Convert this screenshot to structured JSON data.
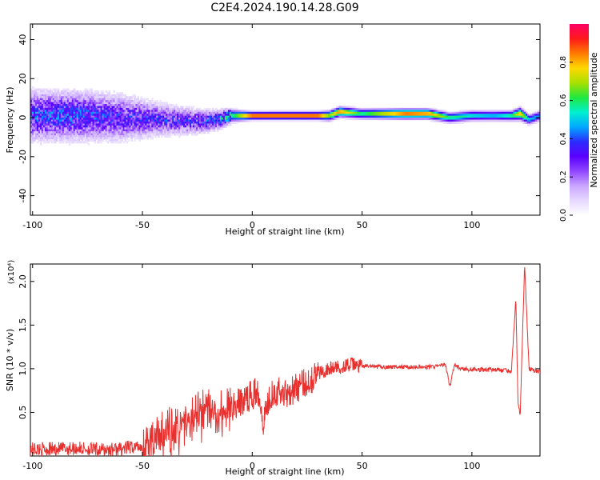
{
  "title": "C2E4.2024.190.14.28.G09",
  "colors": {
    "snr_line": "#e8312f",
    "colormap": [
      "#ffffff",
      "#e6d8ff",
      "#c9a6ff",
      "#8f45ff",
      "#5a00ff",
      "#2c2cff",
      "#00a8ff",
      "#00f0d0",
      "#20e840",
      "#a8e000",
      "#ffd800",
      "#ff7a00",
      "#ff1a1a",
      "#ff0066"
    ]
  },
  "chart_data": [
    {
      "type": "heatmap",
      "title": "C2E4.2024.190.14.28.G09",
      "xlabel": "Height of straight line (km)",
      "ylabel": "Frequency (Hz)",
      "xlim": [
        -101,
        131
      ],
      "ylim": [
        -50,
        48
      ],
      "xticks": [
        -100,
        -50,
        0,
        50,
        100
      ],
      "xtick_labels": [
        "-100",
        "-50",
        "0",
        "50",
        "100"
      ],
      "yticks": [
        40,
        20,
        0,
        -20,
        -40
      ],
      "ytick_labels": [
        "40",
        "20",
        "0",
        "-20",
        "-40"
      ],
      "colorbar": {
        "label": "Normalized spectral amplitude",
        "range": [
          0,
          1
        ],
        "ticks": [
          0.0,
          0.2,
          0.4,
          0.6,
          0.8
        ],
        "tick_labels": [
          "0.0",
          "0.2",
          "0.4",
          "0.6",
          "0.8"
        ]
      },
      "ridge": {
        "x": [
          -101,
          -80,
          -60,
          -40,
          -25,
          -15,
          -10,
          0,
          10,
          20,
          30,
          35,
          40,
          50,
          60,
          70,
          80,
          90,
          100,
          110,
          118,
          122,
          126,
          131
        ],
        "center_hz": [
          1,
          1,
          0,
          -1,
          -2,
          -1,
          1,
          1,
          1,
          1,
          1,
          1,
          3,
          2,
          2,
          2,
          2,
          0,
          1,
          1,
          1,
          2,
          -1,
          1
        ],
        "peak_amplitude": [
          0.35,
          0.35,
          0.3,
          0.3,
          0.3,
          0.4,
          0.55,
          0.95,
          0.95,
          0.95,
          0.95,
          0.7,
          0.85,
          0.6,
          0.75,
          0.9,
          0.85,
          0.6,
          0.55,
          0.5,
          0.6,
          0.8,
          0.5,
          0.45
        ],
        "spread_hz": [
          16,
          16,
          15,
          10,
          8,
          6,
          5,
          3,
          3,
          3,
          3,
          4,
          4,
          4,
          4,
          4,
          4,
          4,
          4,
          4,
          4,
          5,
          4,
          4
        ]
      }
    },
    {
      "type": "line",
      "xlabel": "Height of straight line (km)",
      "ylabel": "SNR (10 * v/v)",
      "y_multiplier": "(x10⁴)",
      "xlim": [
        -101,
        131
      ],
      "ylim": [
        0,
        2.2
      ],
      "xticks": [
        -100,
        -50,
        0,
        50,
        100
      ],
      "xtick_labels": [
        "-100",
        "-50",
        "0",
        "50",
        "100"
      ],
      "yticks": [
        0.5,
        1.0,
        1.5,
        2.0
      ],
      "ytick_labels": [
        "0.5",
        "1.0",
        "1.5",
        "2.0"
      ],
      "series": [
        {
          "x": [
            -101,
            -90,
            -80,
            -70,
            -60,
            -50,
            -45,
            -40,
            -35,
            -30,
            -25,
            -20,
            -15,
            -10,
            -5,
            0,
            3,
            5,
            8,
            10,
            15,
            20,
            25,
            30,
            35,
            40,
            45,
            50,
            60,
            70,
            80,
            85,
            88,
            90,
            92,
            95,
            100,
            110,
            115,
            118,
            120,
            121,
            122,
            124,
            126,
            131
          ],
          "y": [
            0.08,
            0.08,
            0.09,
            0.07,
            0.08,
            0.12,
            0.16,
            0.22,
            0.3,
            0.38,
            0.45,
            0.5,
            0.52,
            0.55,
            0.62,
            0.7,
            0.75,
            0.4,
            0.7,
            0.75,
            0.72,
            0.78,
            0.85,
            0.95,
            1.0,
            1.02,
            1.05,
            1.03,
            1.02,
            1.02,
            1.02,
            1.03,
            1.05,
            0.78,
            1.05,
            1.0,
            0.99,
            0.99,
            0.98,
            0.97,
            1.8,
            0.6,
            0.48,
            2.2,
            1.0,
            0.96
          ]
        }
      ]
    }
  ]
}
